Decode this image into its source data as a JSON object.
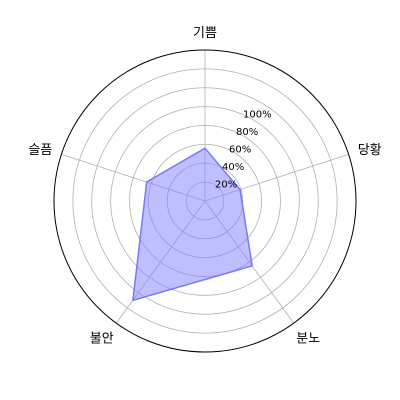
{
  "chart_data": {
    "type": "radar",
    "categories": [
      "기쁨",
      "당황",
      "분노",
      "불안",
      "슬픔"
    ],
    "values": [
      56,
      39,
      85,
      130,
      65
    ],
    "rlim": [
      0,
      160
    ],
    "rticks": [
      20,
      40,
      60,
      80,
      100
    ],
    "rtick_labels": [
      "20%",
      "40%",
      "60%",
      "80%",
      "100%"
    ],
    "rgrid_radii": [
      20,
      40,
      60,
      80,
      100,
      120,
      140
    ],
    "grid": true,
    "fill_color": "#7f7fff",
    "fill_opacity": 0.5,
    "line_color": "#7777ff"
  }
}
